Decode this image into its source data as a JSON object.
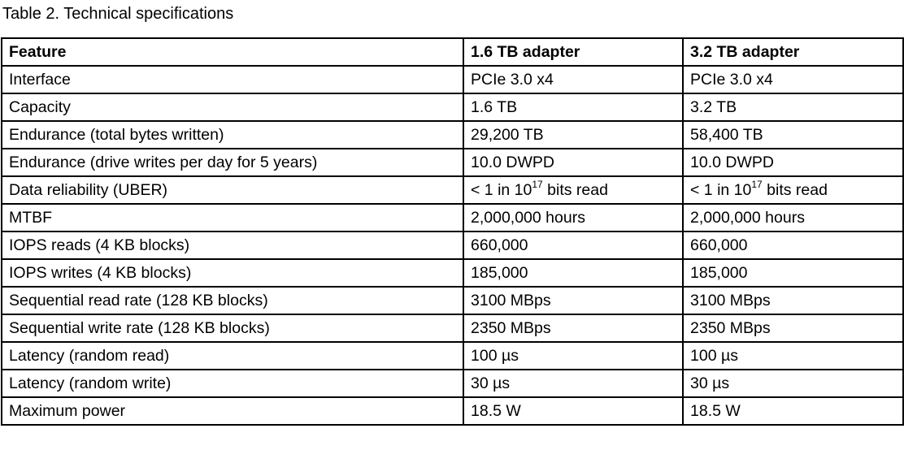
{
  "caption": "Table 2. Technical specifications",
  "headers": [
    "Feature",
    "1.6 TB adapter",
    "3.2 TB adapter"
  ],
  "rows": [
    [
      "Interface",
      "PCIe 3.0 x4",
      "PCIe 3.0 x4"
    ],
    [
      "Capacity",
      "1.6 TB",
      "3.2 TB"
    ],
    [
      "Endurance (total bytes written)",
      "29,200 TB",
      "58,400 TB"
    ],
    [
      "Endurance (drive writes per day for 5 years)",
      "10.0 DWPD",
      "10.0 DWPD"
    ],
    [
      "Data reliability (UBER)",
      {
        "pre": "< 1 in 10",
        "sup": "17",
        "post": " bits read"
      },
      {
        "pre": "< 1 in 10",
        "sup": "17",
        "post": " bits read"
      }
    ],
    [
      "MTBF",
      "2,000,000 hours",
      "2,000,000 hours"
    ],
    [
      "IOPS reads (4 KB blocks)",
      "660,000",
      "660,000"
    ],
    [
      "IOPS writes (4 KB blocks)",
      "185,000",
      "185,000"
    ],
    [
      "Sequential read rate (128 KB blocks)",
      "3100 MBps",
      "3100 MBps"
    ],
    [
      "Sequential write rate (128 KB blocks)",
      "2350 MBps",
      "2350 MBps"
    ],
    [
      "Latency (random read)",
      "100 µs",
      "100 µs"
    ],
    [
      "Latency (random write)",
      "30 µs",
      "30 µs"
    ],
    [
      "Maximum power",
      "18.5 W",
      "18.5 W"
    ]
  ]
}
